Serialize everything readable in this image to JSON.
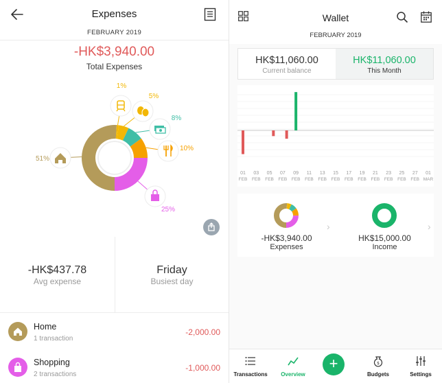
{
  "left": {
    "title": "Expenses",
    "month": "FEBRUARY 2019",
    "total_amount": "-HK$3,940.00",
    "total_label": "Total Expenses",
    "chart_data": {
      "type": "pie",
      "values": [
        51,
        1,
        5,
        8,
        10,
        25
      ],
      "labels": [
        "51%",
        "1%",
        "5%",
        "8%",
        "10%",
        "25%"
      ],
      "icons": [
        "house-icon",
        "train-icon",
        "theater-masks-icon",
        "money-stack-icon",
        "fork-knife-icon",
        "shopping-bag-icon"
      ],
      "colors": [
        "#b49b5a",
        "#f2b705",
        "#f2b705",
        "#3fbea6",
        "#f6a100",
        "#e45ee8"
      ],
      "label_colors": [
        "#b49b5a",
        "#f2b705",
        "#f2b705",
        "#3fbea6",
        "#f6a100",
        "#e45ee8"
      ]
    },
    "avg_expense_value": "-HK$437.78",
    "avg_expense_label": "Avg expense",
    "busiest_day_value": "Friday",
    "busiest_day_label": "Busiest day",
    "categories": [
      {
        "name": "Home",
        "sub": "1 transaction",
        "amount": "-2,000.00",
        "icon": "house-icon",
        "color": "#b49b5a"
      },
      {
        "name": "Shopping",
        "sub": "2 transactions",
        "amount": "-1,000.00",
        "icon": "shopping-bag-icon",
        "color": "#e45ee8"
      }
    ]
  },
  "right": {
    "title": "Wallet",
    "month": "FEBRUARY 2019",
    "balance_value": "HK$11,060.00",
    "balance_label": "Current balance",
    "this_month_value": "HK$11,060.00",
    "this_month_label": "This Month",
    "chart_data": {
      "type": "bar",
      "categories": [
        "01 FEB",
        "03 FEB",
        "05 FEB",
        "07 FEB",
        "09 FEB",
        "11 FEB",
        "13 FEB",
        "15 FEB",
        "17 FEB",
        "19 FEB",
        "21 FEB",
        "23 FEB",
        "25 FEB",
        "27 FEB",
        "01 MAR"
      ],
      "tick_top": [
        "01",
        "03",
        "05",
        "07",
        "09",
        "11",
        "13",
        "15",
        "17",
        "19",
        "21",
        "23",
        "25",
        "27",
        "01"
      ],
      "tick_bottom": [
        "FEB",
        "FEB",
        "FEB",
        "FEB",
        "FEB",
        "FEB",
        "FEB",
        "FEB",
        "FEB",
        "FEB",
        "FEB",
        "FEB",
        "FEB",
        "FEB",
        "MAR"
      ],
      "bars": [
        {
          "x": 0,
          "value": -2000
        },
        {
          "x": 2.3,
          "value": -480
        },
        {
          "x": 3.3,
          "value": -700
        },
        {
          "x": 4.0,
          "value": 2600
        }
      ],
      "ylim": [
        -2200,
        2700
      ],
      "positive_color": "#1ab46a",
      "negative_color": "#e05a5a"
    },
    "expenses_value": "-HK$3,940.00",
    "expenses_label": "Expenses",
    "income_value": "HK$15,000.00",
    "income_label": "Income",
    "accent_green": "#1ab46a",
    "nav": [
      {
        "label": "Transactions",
        "icon": "list-icon"
      },
      {
        "label": "Overview",
        "icon": "trend-line-icon"
      },
      {
        "label": "Budgets",
        "icon": "money-bag-icon"
      },
      {
        "label": "Settings",
        "icon": "sliders-icon"
      }
    ]
  }
}
